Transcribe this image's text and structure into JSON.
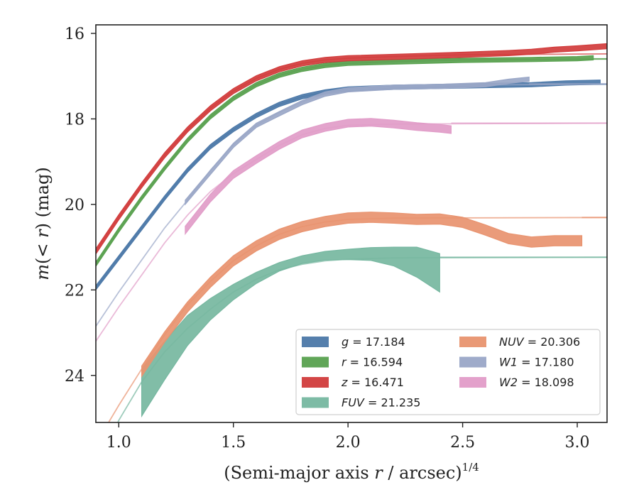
{
  "chart_data": {
    "type": "line",
    "xlabel": "(Semi-major axis r / arcsec)^1/4",
    "ylabel": "m(< r) (mag)",
    "xlim": [
      0.9,
      3.13
    ],
    "ylim": [
      25.1,
      15.8
    ],
    "y_inverted": true,
    "xticks": [
      "1.0",
      "1.5",
      "2.0",
      "2.5",
      "3.0"
    ],
    "xtick_values": [
      1.0,
      1.5,
      2.0,
      2.5,
      3.0
    ],
    "yticks": [
      "16",
      "18",
      "20",
      "22",
      "24"
    ],
    "ytick_values": [
      16,
      18,
      20,
      22,
      24
    ],
    "legend_position": "lower-right",
    "series": [
      {
        "name": "g = 17.184",
        "symbol": "g",
        "value": "17.184",
        "color": "#4c78a8",
        "asymptote": 17.184,
        "model": [
          [
            0.9,
            21.95
          ],
          [
            1.0,
            21.25
          ],
          [
            1.1,
            20.55
          ],
          [
            1.2,
            19.85
          ],
          [
            1.3,
            19.2
          ],
          [
            1.4,
            18.65
          ],
          [
            1.5,
            18.25
          ],
          [
            1.6,
            17.92
          ],
          [
            1.7,
            17.66
          ],
          [
            1.8,
            17.48
          ],
          [
            1.9,
            17.37
          ],
          [
            2.0,
            17.3
          ],
          [
            2.2,
            17.25
          ],
          [
            2.5,
            17.21
          ],
          [
            3.13,
            17.19
          ]
        ],
        "data": [
          [
            0.9,
            21.95
          ],
          [
            1.0,
            21.25
          ],
          [
            1.1,
            20.55
          ],
          [
            1.2,
            19.85
          ],
          [
            1.3,
            19.2
          ],
          [
            1.4,
            18.65
          ],
          [
            1.5,
            18.25
          ],
          [
            1.6,
            17.92
          ],
          [
            1.7,
            17.66
          ],
          [
            1.8,
            17.48
          ],
          [
            1.9,
            17.37
          ],
          [
            2.0,
            17.3
          ],
          [
            2.2,
            17.26
          ],
          [
            2.4,
            17.24
          ],
          [
            2.6,
            17.22
          ],
          [
            2.8,
            17.2
          ],
          [
            2.95,
            17.16
          ],
          [
            3.1,
            17.14
          ]
        ],
        "band": 0.05
      },
      {
        "name": "r = 16.594",
        "symbol": "r",
        "value": "16.594",
        "color": "#59a14f",
        "asymptote": 16.594,
        "model": [
          [
            0.9,
            21.4
          ],
          [
            1.0,
            20.6
          ],
          [
            1.1,
            19.85
          ],
          [
            1.2,
            19.15
          ],
          [
            1.3,
            18.5
          ],
          [
            1.4,
            17.95
          ],
          [
            1.5,
            17.52
          ],
          [
            1.6,
            17.2
          ],
          [
            1.7,
            16.98
          ],
          [
            1.8,
            16.84
          ],
          [
            1.9,
            16.75
          ],
          [
            2.0,
            16.7
          ],
          [
            2.2,
            16.66
          ],
          [
            2.5,
            16.62
          ],
          [
            3.13,
            16.6
          ]
        ],
        "data": [
          [
            0.9,
            21.4
          ],
          [
            1.0,
            20.6
          ],
          [
            1.1,
            19.85
          ],
          [
            1.2,
            19.15
          ],
          [
            1.3,
            18.5
          ],
          [
            1.4,
            17.95
          ],
          [
            1.5,
            17.52
          ],
          [
            1.6,
            17.2
          ],
          [
            1.7,
            16.98
          ],
          [
            1.8,
            16.84
          ],
          [
            1.9,
            16.75
          ],
          [
            2.0,
            16.7
          ],
          [
            2.2,
            16.67
          ],
          [
            2.5,
            16.63
          ],
          [
            2.8,
            16.61
          ],
          [
            3.0,
            16.59
          ],
          [
            3.07,
            16.57
          ]
        ],
        "band": 0.05
      },
      {
        "name": "z = 16.471",
        "symbol": "z",
        "value": "16.471",
        "color": "#d13c3c",
        "asymptote": 16.471,
        "model": [
          [
            0.9,
            21.1
          ],
          [
            1.0,
            20.3
          ],
          [
            1.1,
            19.55
          ],
          [
            1.2,
            18.85
          ],
          [
            1.3,
            18.25
          ],
          [
            1.4,
            17.75
          ],
          [
            1.5,
            17.35
          ],
          [
            1.6,
            17.05
          ],
          [
            1.7,
            16.84
          ],
          [
            1.8,
            16.7
          ],
          [
            1.9,
            16.62
          ],
          [
            2.0,
            16.58
          ],
          [
            2.2,
            16.54
          ],
          [
            2.5,
            16.5
          ],
          [
            3.13,
            16.48
          ]
        ],
        "data": [
          [
            0.9,
            21.1
          ],
          [
            1.0,
            20.3
          ],
          [
            1.1,
            19.55
          ],
          [
            1.2,
            18.85
          ],
          [
            1.3,
            18.25
          ],
          [
            1.4,
            17.75
          ],
          [
            1.5,
            17.35
          ],
          [
            1.6,
            17.05
          ],
          [
            1.7,
            16.84
          ],
          [
            1.8,
            16.7
          ],
          [
            1.9,
            16.62
          ],
          [
            2.0,
            16.58
          ],
          [
            2.2,
            16.55
          ],
          [
            2.5,
            16.5
          ],
          [
            2.7,
            16.46
          ],
          [
            2.8,
            16.43
          ],
          [
            2.9,
            16.38
          ],
          [
            3.0,
            16.35
          ],
          [
            3.13,
            16.3
          ]
        ],
        "band": 0.06
      },
      {
        "name": "FUV = 21.235",
        "symbol": "FUV",
        "value": "21.235",
        "color": "#76b7a0",
        "asymptote": 21.235,
        "model": [
          [
            0.9,
            26.2
          ],
          [
            1.0,
            25.05
          ],
          [
            1.1,
            24.15
          ],
          [
            1.2,
            23.45
          ],
          [
            1.3,
            22.9
          ],
          [
            1.4,
            22.45
          ],
          [
            1.5,
            22.05
          ],
          [
            1.6,
            21.75
          ],
          [
            1.7,
            21.53
          ],
          [
            1.8,
            21.4
          ],
          [
            1.9,
            21.32
          ],
          [
            2.0,
            21.28
          ],
          [
            2.2,
            21.25
          ],
          [
            3.13,
            21.235
          ]
        ],
        "data": [
          [
            1.1,
            24.4
          ],
          [
            1.2,
            23.65
          ],
          [
            1.3,
            22.95
          ],
          [
            1.4,
            22.45
          ],
          [
            1.5,
            22.05
          ],
          [
            1.6,
            21.72
          ],
          [
            1.7,
            21.46
          ],
          [
            1.8,
            21.29
          ],
          [
            1.9,
            21.2
          ],
          [
            2.0,
            21.17
          ],
          [
            2.1,
            21.16
          ],
          [
            2.2,
            21.22
          ],
          [
            2.3,
            21.35
          ],
          [
            2.4,
            21.6
          ]
        ],
        "band_lower": [
          0.55,
          0.45,
          0.35,
          0.25,
          0.18,
          0.13,
          0.1,
          0.09,
          0.1,
          0.12,
          0.15,
          0.22,
          0.35,
          0.45
        ],
        "band_upper": [
          0.55,
          0.45,
          0.35,
          0.25,
          0.18,
          0.13,
          0.1,
          0.09,
          0.1,
          0.12,
          0.15,
          0.22,
          0.35,
          0.45
        ]
      },
      {
        "name": "NUV = 20.306",
        "symbol": "NUV",
        "value": "20.306",
        "color": "#e8936f",
        "asymptote": 20.306,
        "model": [
          [
            0.9,
            25.6
          ],
          [
            1.0,
            24.7
          ],
          [
            1.1,
            23.85
          ],
          [
            1.2,
            23.05
          ],
          [
            1.3,
            22.35
          ],
          [
            1.4,
            21.8
          ],
          [
            1.5,
            21.32
          ],
          [
            1.6,
            20.97
          ],
          [
            1.7,
            20.7
          ],
          [
            1.8,
            20.52
          ],
          [
            1.9,
            20.41
          ],
          [
            2.0,
            20.35
          ],
          [
            2.2,
            20.32
          ],
          [
            3.13,
            20.306
          ]
        ],
        "data": [
          [
            1.1,
            23.9
          ],
          [
            1.2,
            23.1
          ],
          [
            1.3,
            22.4
          ],
          [
            1.4,
            21.82
          ],
          [
            1.5,
            21.32
          ],
          [
            1.6,
            20.97
          ],
          [
            1.7,
            20.7
          ],
          [
            1.8,
            20.52
          ],
          [
            1.9,
            20.4
          ],
          [
            2.0,
            20.32
          ],
          [
            2.1,
            20.3
          ],
          [
            2.2,
            20.32
          ],
          [
            2.3,
            20.35
          ],
          [
            2.4,
            20.34
          ],
          [
            2.5,
            20.42
          ],
          [
            2.6,
            20.6
          ],
          [
            2.7,
            20.8
          ],
          [
            2.8,
            20.88
          ],
          [
            2.9,
            20.85
          ],
          [
            3.0,
            20.85
          ],
          [
            3.02,
            20.85
          ]
        ],
        "band": 0.12
      },
      {
        "name": "W1 = 17.180",
        "symbol": "W1",
        "value": "17.180",
        "color": "#9aa7c7",
        "asymptote": 17.18,
        "model": [
          [
            0.9,
            22.85
          ],
          [
            1.0,
            22.05
          ],
          [
            1.1,
            21.3
          ],
          [
            1.2,
            20.55
          ],
          [
            1.3,
            19.9
          ],
          [
            1.4,
            19.2
          ],
          [
            1.5,
            18.6
          ],
          [
            1.6,
            18.15
          ],
          [
            1.7,
            17.85
          ],
          [
            1.8,
            17.6
          ],
          [
            1.9,
            17.42
          ],
          [
            2.0,
            17.32
          ],
          [
            2.2,
            17.25
          ],
          [
            2.5,
            17.21
          ],
          [
            3.13,
            17.185
          ]
        ],
        "data": [
          [
            1.29,
            19.95
          ],
          [
            1.4,
            19.25
          ],
          [
            1.5,
            18.62
          ],
          [
            1.6,
            18.15
          ],
          [
            1.7,
            17.88
          ],
          [
            1.8,
            17.62
          ],
          [
            1.9,
            17.42
          ],
          [
            2.0,
            17.32
          ],
          [
            2.2,
            17.26
          ],
          [
            2.4,
            17.24
          ],
          [
            2.6,
            17.2
          ],
          [
            2.7,
            17.12
          ],
          [
            2.79,
            17.07
          ]
        ],
        "band": 0.05
      },
      {
        "name": "W2 = 18.098",
        "symbol": "W2",
        "value": "18.098",
        "color": "#e19cc8",
        "asymptote": 18.098,
        "model": [
          [
            0.9,
            23.2
          ],
          [
            1.0,
            22.4
          ],
          [
            1.1,
            21.65
          ],
          [
            1.2,
            20.9
          ],
          [
            1.3,
            20.25
          ],
          [
            1.4,
            19.7
          ],
          [
            1.5,
            19.28
          ],
          [
            1.6,
            18.95
          ],
          [
            1.7,
            18.62
          ],
          [
            1.8,
            18.37
          ],
          [
            1.9,
            18.22
          ],
          [
            2.0,
            18.15
          ],
          [
            2.2,
            18.12
          ],
          [
            3.13,
            18.098
          ]
        ],
        "data": [
          [
            1.29,
            20.6
          ],
          [
            1.4,
            19.85
          ],
          [
            1.5,
            19.3
          ],
          [
            1.6,
            18.95
          ],
          [
            1.7,
            18.62
          ],
          [
            1.8,
            18.35
          ],
          [
            1.9,
            18.2
          ],
          [
            2.0,
            18.1
          ],
          [
            2.1,
            18.08
          ],
          [
            2.2,
            18.12
          ],
          [
            2.3,
            18.18
          ],
          [
            2.4,
            18.22
          ],
          [
            2.45,
            18.25
          ]
        ],
        "band": 0.09
      }
    ]
  }
}
